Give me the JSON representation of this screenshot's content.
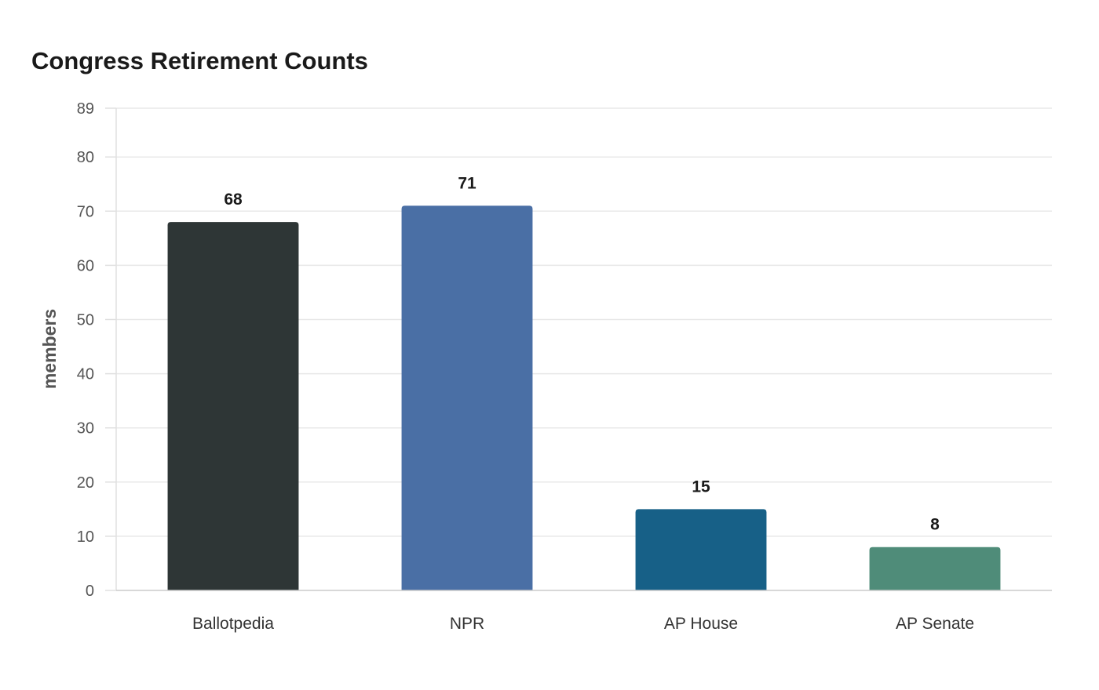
{
  "chart_data": {
    "type": "bar",
    "title": "Congress Retirement Counts",
    "xlabel": "",
    "ylabel": "members",
    "categories": [
      "Ballotpedia",
      "NPR",
      "AP House",
      "AP Senate"
    ],
    "values": [
      68,
      71,
      15,
      8
    ],
    "colors": [
      "#2e3636",
      "#4a6fa5",
      "#176087",
      "#4f8c79"
    ],
    "ylim": [
      0,
      89
    ],
    "yticks": [
      0,
      10,
      20,
      30,
      40,
      50,
      60,
      70,
      80,
      89
    ],
    "grid": true,
    "legend": "none"
  }
}
